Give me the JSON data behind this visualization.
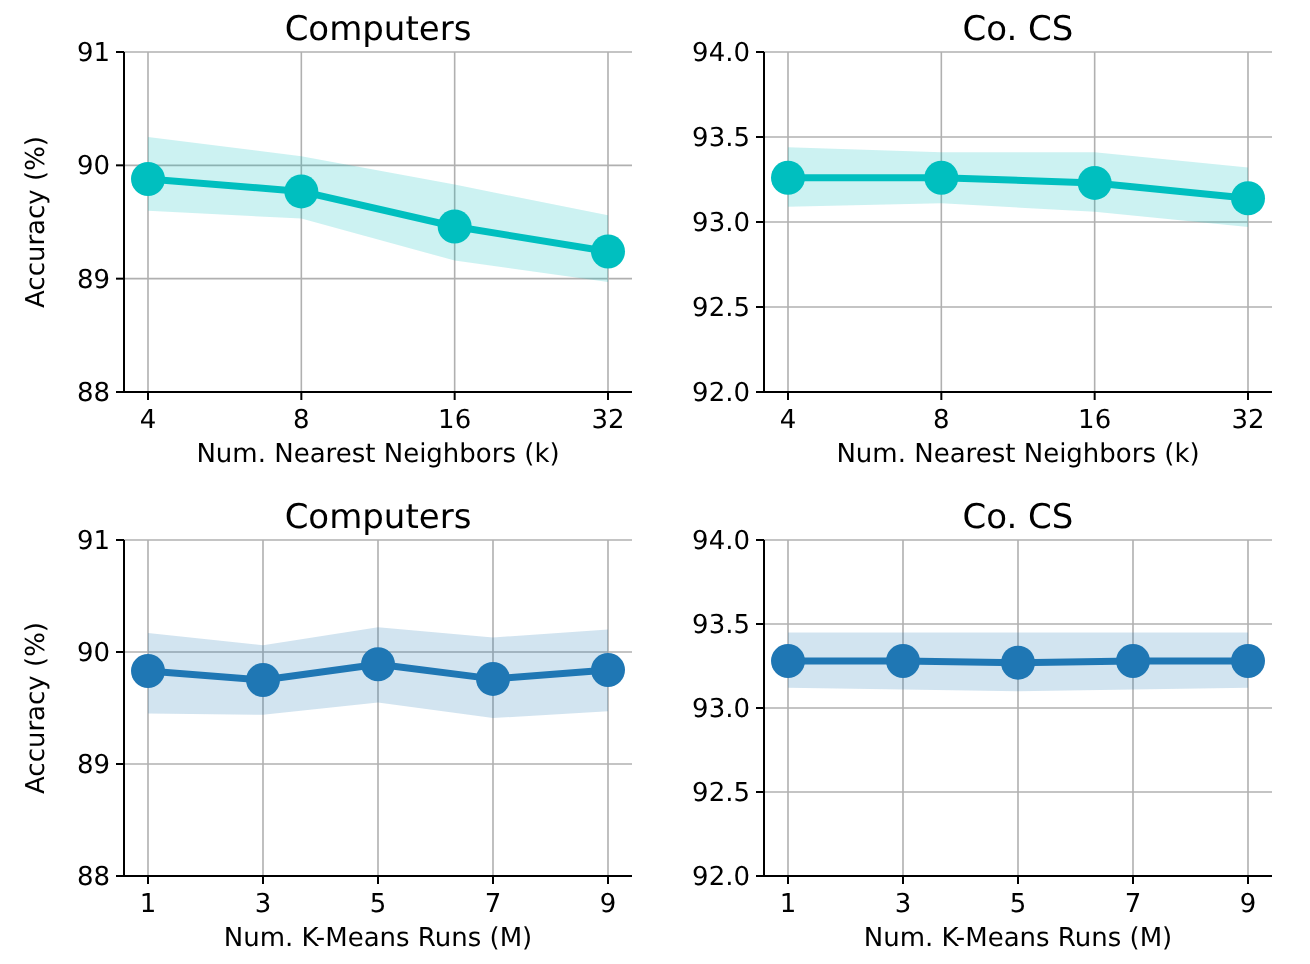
{
  "chart_data": [
    {
      "type": "line",
      "title": "Computers",
      "xlabel": "Num. Nearest Neighbors (k)",
      "ylabel": "Accuracy (%)",
      "categories": [
        "4",
        "8",
        "16",
        "32"
      ],
      "ylim": [
        88,
        91
      ],
      "yticks": [
        88,
        89,
        90,
        91
      ],
      "grid": true,
      "marker": "circle",
      "series": [
        {
          "color": "#00bfbf",
          "values": [
            89.88,
            89.77,
            89.46,
            89.24
          ],
          "lower": [
            89.6,
            89.53,
            89.16,
            88.97
          ],
          "upper": [
            90.25,
            90.08,
            89.83,
            89.56
          ]
        }
      ]
    },
    {
      "type": "line",
      "title": "Co. CS",
      "xlabel": "Num. Nearest Neighbors (k)",
      "categories": [
        "4",
        "8",
        "16",
        "32"
      ],
      "ylim": [
        92,
        94
      ],
      "yticks": [
        {
          "value": 92,
          "label": "92.0"
        },
        92.5,
        {
          "value": 93,
          "label": "93.0"
        },
        93.5,
        {
          "value": 94,
          "label": "94.0"
        }
      ],
      "grid": true,
      "marker": "circle",
      "series": [
        {
          "color": "#00bfbf",
          "values": [
            93.26,
            93.26,
            93.23,
            93.14
          ],
          "lower": [
            93.09,
            93.11,
            93.06,
            92.97
          ],
          "upper": [
            93.44,
            93.41,
            93.41,
            93.32
          ]
        }
      ]
    },
    {
      "type": "line",
      "title": "Computers",
      "xlabel": "Num. K-Means Runs (M)",
      "ylabel": "Accuracy (%)",
      "categories": [
        "1",
        "3",
        "5",
        "7",
        "9"
      ],
      "ylim": [
        88,
        91
      ],
      "yticks": [
        88,
        89,
        90,
        91
      ],
      "grid": true,
      "marker": "circle",
      "series": [
        {
          "color": "#1f77b4",
          "values": [
            89.83,
            89.75,
            89.89,
            89.76,
            89.84
          ],
          "lower": [
            89.45,
            89.44,
            89.55,
            89.41,
            89.47
          ],
          "upper": [
            90.17,
            90.06,
            90.22,
            90.13,
            90.2
          ]
        }
      ]
    },
    {
      "type": "line",
      "title": "Co. CS",
      "xlabel": "Num. K-Means Runs (M)",
      "categories": [
        "1",
        "3",
        "5",
        "7",
        "9"
      ],
      "ylim": [
        92,
        94
      ],
      "yticks": [
        {
          "value": 92,
          "label": "92.0"
        },
        92.5,
        {
          "value": 93,
          "label": "93.0"
        },
        93.5,
        {
          "value": 94,
          "label": "94.0"
        }
      ],
      "grid": true,
      "marker": "circle",
      "series": [
        {
          "color": "#1f77b4",
          "values": [
            93.28,
            93.28,
            93.27,
            93.28,
            93.28
          ],
          "lower": [
            93.12,
            93.11,
            93.1,
            93.11,
            93.12
          ],
          "upper": [
            93.45,
            93.45,
            93.45,
            93.45,
            93.45
          ]
        }
      ]
    }
  ]
}
